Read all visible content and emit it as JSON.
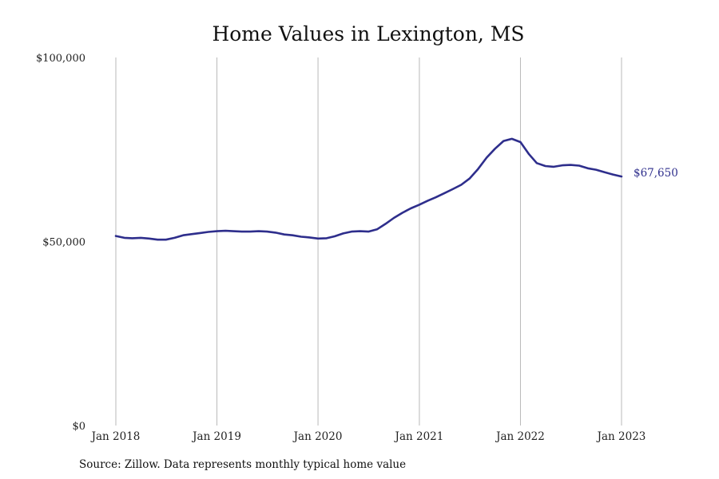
{
  "chart_data": {
    "type": "line",
    "title": "Home Values in Lexington, MS",
    "xlabel": "",
    "ylabel": "",
    "ylim": [
      0,
      100000
    ],
    "y_ticks": [
      0,
      50000,
      100000
    ],
    "y_tick_labels": [
      "$0",
      "$50,000",
      "$100,000"
    ],
    "x_ticks": [
      "2018-01",
      "2019-01",
      "2020-01",
      "2021-01",
      "2022-01",
      "2023-01"
    ],
    "x_tick_labels": [
      "Jan 2018",
      "Jan 2019",
      "Jan 2020",
      "Jan 2021",
      "Jan 2022",
      "Jan 2023"
    ],
    "grid": "vertical",
    "line_color": "#2e2e8c",
    "end_label": "$67,650",
    "series": [
      {
        "x": [
          "2018-01",
          "2018-02",
          "2018-03",
          "2018-04",
          "2018-05",
          "2018-06",
          "2018-07",
          "2018-08",
          "2018-09",
          "2018-10",
          "2018-11",
          "2018-12",
          "2019-01",
          "2019-02",
          "2019-03",
          "2019-04",
          "2019-05",
          "2019-06",
          "2019-07",
          "2019-08",
          "2019-09",
          "2019-10",
          "2019-11",
          "2019-12",
          "2020-01",
          "2020-02",
          "2020-03",
          "2020-04",
          "2020-05",
          "2020-06",
          "2020-07",
          "2020-08",
          "2020-09",
          "2020-10",
          "2020-11",
          "2020-12",
          "2021-01",
          "2021-02",
          "2021-03",
          "2021-04",
          "2021-05",
          "2021-06",
          "2021-07",
          "2021-08",
          "2021-09",
          "2021-10",
          "2021-11",
          "2021-12",
          "2022-01",
          "2022-02",
          "2022-03",
          "2022-04",
          "2022-05",
          "2022-06",
          "2022-07",
          "2022-08",
          "2022-09",
          "2022-10",
          "2022-11",
          "2022-12",
          "2023-01"
        ],
        "values": [
          51500,
          51000,
          50900,
          51000,
          50800,
          50500,
          50500,
          51000,
          51700,
          52000,
          52300,
          52600,
          52800,
          52900,
          52800,
          52700,
          52700,
          52800,
          52700,
          52400,
          51900,
          51700,
          51300,
          51100,
          50800,
          50900,
          51400,
          52200,
          52700,
          52800,
          52700,
          53300,
          54800,
          56400,
          57800,
          59000,
          60000,
          61100,
          62000,
          63100,
          64200,
          65400,
          67100,
          69700,
          72800,
          75200,
          77300,
          77900,
          77000,
          73700,
          71300,
          70500,
          70300,
          70700,
          70800,
          70600,
          69900,
          69500,
          68800,
          68200,
          67650
        ]
      }
    ],
    "source": "Source: Zillow. Data represents monthly typical home value"
  }
}
